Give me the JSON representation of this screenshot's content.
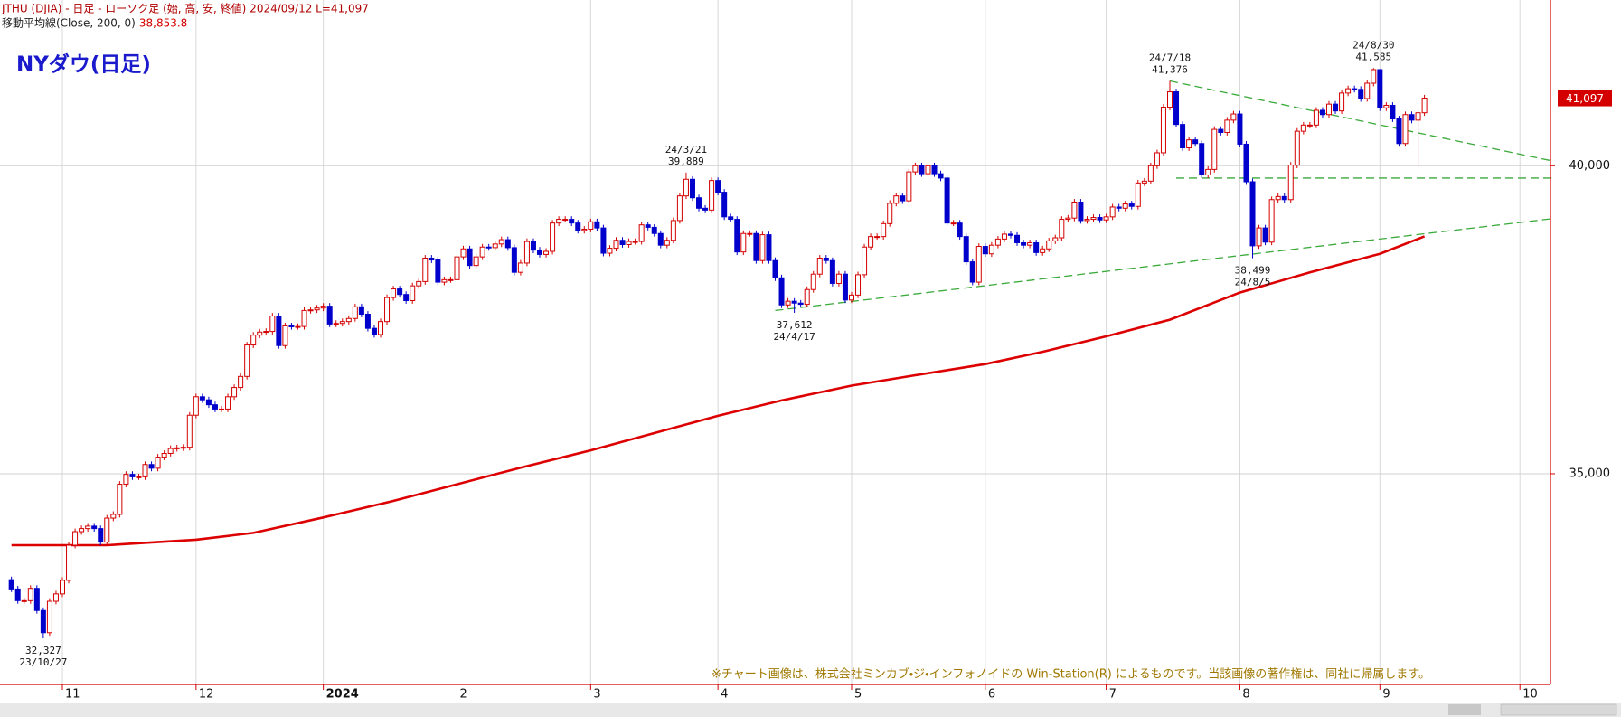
{
  "chart_data": {
    "type": "candlestick",
    "header": "JTHU (DJIA) - 日足 - ローソク足 (始, 高, 安, 終値)  2024/09/12 L=41,097",
    "title": "NYダウ(日足)",
    "footnote": "※チャート画像は、株式会社ミンカブ・ジ・インフォノイドの Win-Station(R) によるものです。当該画像の著作権は、同社に帰属します。",
    "xlim": [
      -1.8,
      241.8
    ],
    "xticks": [
      {
        "value": 8,
        "label": "11"
      },
      {
        "value": 29,
        "label": "12"
      },
      {
        "value": 49,
        "label": "2024"
      },
      {
        "value": 70,
        "label": "2"
      },
      {
        "value": 91,
        "label": "3"
      },
      {
        "value": 111,
        "label": "4"
      },
      {
        "value": 132,
        "label": "5"
      },
      {
        "value": 153,
        "label": "6"
      },
      {
        "value": 172,
        "label": "7"
      },
      {
        "value": 193,
        "label": "8"
      },
      {
        "value": 215,
        "label": "9"
      },
      {
        "value": 237,
        "label": "10"
      }
    ],
    "ylim": [
      31580,
      42690
    ],
    "yticks": [
      {
        "value": 40000,
        "label": "40,000"
      },
      {
        "value": 35000,
        "label": "35,000"
      }
    ],
    "grid": true,
    "candles": {
      "up_color": "#d40000",
      "down_color": "#0000cc",
      "open": [
        33280,
        33130,
        32940,
        32940,
        33140,
        32780,
        32420,
        32930,
        33050,
        33270,
        33840,
        34060,
        34110,
        34150,
        34110,
        33890,
        34280,
        34340,
        34830,
        34990,
        34950,
        34950,
        35150,
        35090,
        35270,
        35330,
        35410,
        35420,
        35430,
        35950,
        36250,
        36200,
        36120,
        36050,
        36050,
        36250,
        36400,
        36580,
        37090,
        37250,
        37300,
        37310,
        37560,
        37080,
        37400,
        37390,
        37390,
        37650,
        37660,
        37690,
        37720,
        37430,
        37440,
        37470,
        37520,
        37710,
        37590,
        37360,
        37260,
        37470,
        37860,
        38000,
        37910,
        37810,
        38050,
        38120,
        38500,
        38470,
        38110,
        38150,
        38150,
        38520,
        38650,
        38380,
        38520,
        38680,
        38670,
        38730,
        38800,
        38670,
        38270,
        38420,
        38770,
        38630,
        38560,
        38610,
        39070,
        39130,
        39130,
        39070,
        38950,
        38970,
        39090,
        38990,
        38580,
        38660,
        38790,
        38720,
        38770,
        38770,
        39040,
        39000,
        38900,
        38710,
        38790,
        39110,
        39510,
        39780,
        39480,
        39310,
        39280,
        39760,
        39570,
        39170,
        39130,
        38600,
        38900,
        38900,
        38460,
        38880,
        38460,
        38180,
        37740,
        37800,
        37770,
        37750,
        37990,
        38240,
        38500,
        38460,
        38090,
        38240,
        37820,
        37900,
        38230,
        38680,
        38850,
        38850,
        39060,
        39390,
        39510,
        39430,
        39900,
        40000,
        39870,
        40000,
        39870,
        39800,
        39070,
        39070,
        38850,
        38440,
        38110,
        38690,
        38570,
        38710,
        38810,
        38890,
        38870,
        38750,
        38710,
        38750,
        38590,
        38650,
        38780,
        38830,
        39130,
        39150,
        39410,
        39110,
        39130,
        39160,
        39120,
        39170,
        39330,
        39310,
        39380,
        39340,
        39720,
        39750,
        40000,
        40210,
        40950,
        41200,
        40670,
        40290,
        40420,
        40360,
        39850,
        39940,
        40590,
        40540,
        40740,
        40840,
        40350,
        39740,
        38700,
        38990,
        38760,
        39450,
        39500,
        39450,
        40010,
        40560,
        40660,
        40660,
        40900,
        40830,
        41000,
        40890,
        41180,
        41250,
        41240,
        41090,
        41340,
        41560,
        40940,
        40980,
        40760,
        40360,
        40830,
        40740,
        40860
      ],
      "high": [
        33330,
        33180,
        32990,
        33190,
        33190,
        32830,
        32980,
        33100,
        33320,
        33890,
        34110,
        34160,
        34200,
        34200,
        34160,
        34330,
        34390,
        34880,
        35040,
        35040,
        35000,
        35200,
        35200,
        35320,
        35380,
        35460,
        35470,
        35480,
        36000,
        36300,
        36300,
        36250,
        36170,
        36100,
        36300,
        36450,
        36630,
        37140,
        37300,
        37350,
        37360,
        37610,
        37610,
        37450,
        37450,
        37440,
        37700,
        37710,
        37740,
        37770,
        37770,
        37490,
        37520,
        37570,
        37760,
        37760,
        37640,
        37410,
        37520,
        37910,
        38050,
        38050,
        37960,
        38100,
        38170,
        38550,
        38550,
        38520,
        38200,
        38200,
        38570,
        38700,
        38700,
        38570,
        38730,
        38730,
        38780,
        38850,
        38850,
        38720,
        38470,
        38820,
        38820,
        38680,
        38660,
        39120,
        39180,
        39180,
        39180,
        39120,
        39020,
        39140,
        39140,
        39040,
        38710,
        38840,
        38840,
        38820,
        38820,
        39090,
        39090,
        39050,
        38950,
        38840,
        39160,
        39560,
        39889,
        39830,
        39530,
        39360,
        39810,
        39810,
        39620,
        39220,
        39180,
        38950,
        38950,
        38950,
        38930,
        38930,
        38510,
        38230,
        37850,
        37850,
        37820,
        38040,
        38290,
        38550,
        38550,
        38510,
        38290,
        38290,
        37950,
        38280,
        38730,
        38900,
        38900,
        39110,
        39440,
        39560,
        39560,
        39950,
        40050,
        40050,
        40050,
        40050,
        39920,
        39850,
        39120,
        39120,
        38900,
        38490,
        38740,
        38740,
        38760,
        38860,
        38940,
        38940,
        38920,
        38800,
        38800,
        38800,
        38700,
        38830,
        38880,
        39180,
        39200,
        39460,
        39460,
        39180,
        39210,
        39210,
        39220,
        39380,
        39380,
        39430,
        39430,
        39770,
        39800,
        40050,
        40260,
        41000,
        41376,
        41250,
        40720,
        40470,
        40470,
        40410,
        39990,
        40640,
        40640,
        40790,
        40890,
        40890,
        40400,
        39790,
        39040,
        39040,
        39500,
        39550,
        39550,
        40060,
        40610,
        40710,
        40710,
        40950,
        40950,
        41050,
        41050,
        41230,
        41300,
        41300,
        41290,
        41390,
        41585,
        41570,
        41030,
        41030,
        40810,
        40880,
        40880,
        40910,
        41150
      ],
      "low": [
        33080,
        32890,
        32890,
        32890,
        32730,
        32327,
        32370,
        32880,
        33000,
        33220,
        33790,
        34010,
        34060,
        34060,
        33840,
        33840,
        34230,
        34290,
        34780,
        34900,
        34900,
        34900,
        35040,
        35040,
        35220,
        35280,
        35360,
        35370,
        35380,
        35900,
        36150,
        36070,
        36000,
        36000,
        36000,
        36200,
        36350,
        36530,
        37040,
        37200,
        37250,
        37260,
        37030,
        37030,
        37340,
        37340,
        37340,
        37600,
        37610,
        37640,
        37380,
        37380,
        37390,
        37420,
        37470,
        37540,
        37310,
        37210,
        37210,
        37420,
        37810,
        37860,
        37760,
        37760,
        38000,
        38070,
        38420,
        38060,
        38060,
        38100,
        38100,
        38470,
        38330,
        38330,
        38470,
        38620,
        38620,
        38680,
        38620,
        38220,
        38220,
        38370,
        38580,
        38510,
        38510,
        38560,
        39020,
        39080,
        39020,
        38900,
        38900,
        38920,
        38940,
        38530,
        38530,
        38610,
        38670,
        38670,
        38720,
        38720,
        38950,
        38850,
        38660,
        38660,
        38740,
        39060,
        39460,
        39430,
        39260,
        39230,
        39230,
        39520,
        39120,
        39080,
        38550,
        38550,
        38850,
        38410,
        38410,
        38410,
        38130,
        37690,
        37690,
        37612,
        37700,
        37700,
        37940,
        38190,
        38410,
        38040,
        38040,
        37770,
        37770,
        37850,
        38180,
        38630,
        38800,
        38800,
        39010,
        39340,
        39380,
        39380,
        39850,
        39820,
        39820,
        39820,
        39750,
        39020,
        39020,
        38800,
        38390,
        38060,
        38060,
        38520,
        38520,
        38660,
        38760,
        38820,
        38700,
        38660,
        38660,
        38540,
        38540,
        38600,
        38730,
        38780,
        39080,
        39100,
        39060,
        39060,
        39080,
        39070,
        39070,
        39120,
        39260,
        39260,
        39290,
        39290,
        39670,
        39700,
        39950,
        40160,
        40900,
        40620,
        40240,
        40240,
        40310,
        39800,
        39800,
        39890,
        40490,
        40490,
        40690,
        40300,
        39690,
        38499,
        38650,
        38710,
        38710,
        39400,
        39400,
        39400,
        39960,
        40510,
        40610,
        40610,
        40780,
        40780,
        40840,
        40840,
        41130,
        41190,
        41040,
        41040,
        41290,
        40890,
        40890,
        40710,
        40310,
        40310,
        40690,
        39990,
        40810
      ],
      "close": [
        33130,
        32940,
        32940,
        33140,
        32780,
        32420,
        32930,
        33050,
        33270,
        33840,
        34060,
        34110,
        34150,
        34110,
        33890,
        34280,
        34340,
        34830,
        34990,
        34950,
        34950,
        35150,
        35090,
        35270,
        35330,
        35410,
        35420,
        35430,
        35950,
        36250,
        36200,
        36120,
        36050,
        36050,
        36250,
        36400,
        36580,
        37090,
        37250,
        37300,
        37310,
        37560,
        37080,
        37400,
        37390,
        37390,
        37650,
        37660,
        37690,
        37720,
        37430,
        37440,
        37470,
        37520,
        37710,
        37590,
        37360,
        37260,
        37470,
        37860,
        38000,
        37910,
        37810,
        38050,
        38120,
        38500,
        38470,
        38110,
        38150,
        38150,
        38520,
        38650,
        38380,
        38520,
        38680,
        38670,
        38730,
        38800,
        38670,
        38270,
        38420,
        38770,
        38630,
        38560,
        38610,
        39070,
        39130,
        39130,
        39070,
        38950,
        38970,
        39090,
        38990,
        38580,
        38660,
        38790,
        38720,
        38770,
        38770,
        39040,
        39000,
        38900,
        38710,
        38790,
        39110,
        39510,
        39780,
        39480,
        39310,
        39280,
        39760,
        39570,
        39170,
        39130,
        38600,
        38900,
        38900,
        38460,
        38880,
        38460,
        38180,
        37740,
        37800,
        37770,
        37750,
        37990,
        38240,
        38500,
        38460,
        38090,
        38240,
        37820,
        37900,
        38230,
        38680,
        38850,
        38850,
        39060,
        39390,
        39510,
        39430,
        39900,
        40000,
        39870,
        40000,
        39870,
        39800,
        39070,
        39070,
        38850,
        38440,
        38110,
        38690,
        38570,
        38710,
        38810,
        38890,
        38870,
        38750,
        38710,
        38750,
        38590,
        38650,
        38780,
        38830,
        39130,
        39150,
        39410,
        39110,
        39130,
        39160,
        39120,
        39170,
        39330,
        39310,
        39380,
        39340,
        39720,
        39750,
        40000,
        40210,
        40950,
        41200,
        40670,
        40290,
        40420,
        40360,
        39850,
        39940,
        40590,
        40540,
        40740,
        40840,
        40350,
        39740,
        38700,
        38990,
        38760,
        39450,
        39500,
        39450,
        40010,
        40560,
        40660,
        40660,
        40900,
        40830,
        41000,
        40890,
        41180,
        41250,
        41240,
        41090,
        41340,
        41560,
        40940,
        40980,
        40760,
        40360,
        40830,
        40740,
        40860,
        41097
      ]
    },
    "moving_average": {
      "label": "移動平均線(Close, 200, 0)",
      "value_label": "38,853.8",
      "color": "#dd0000",
      "x": [
        0,
        15,
        29,
        38,
        49,
        60,
        70,
        80,
        91,
        101,
        111,
        121,
        132,
        142,
        153,
        162,
        172,
        182,
        193,
        204,
        215,
        222
      ],
      "values": [
        33840,
        33840,
        33930,
        34040,
        34290,
        34560,
        34830,
        35100,
        35380,
        35660,
        35940,
        36190,
        36430,
        36600,
        36780,
        36980,
        37230,
        37500,
        37940,
        38270,
        38570,
        38853.8
      ]
    },
    "last_price": {
      "value": 41097,
      "label": "41,097"
    },
    "annotations": [
      {
        "at": 5,
        "date": "23/10/27",
        "value": 32327,
        "label": "32,327"
      },
      {
        "at": 106,
        "date": "24/3/21",
        "value": 39889,
        "label": "39,889"
      },
      {
        "at": 123,
        "date": "24/4/17",
        "value": 37612,
        "label": "37,612"
      },
      {
        "at": 182,
        "date": "24/7/18",
        "value": 41376,
        "label": "41,376"
      },
      {
        "at": 195,
        "date": "24/8/5",
        "value": 38499,
        "label": "38,499"
      },
      {
        "at": 214,
        "date": "24/8/30",
        "value": 41585,
        "label": "41,585"
      }
    ],
    "trendline_color": "#3aaa3a",
    "trendlines": [
      {
        "points": [
          [
            120,
            37650
          ],
          [
            242,
            39140
          ]
        ]
      },
      {
        "points": [
          [
            182,
            41376
          ],
          [
            242,
            40080
          ]
        ]
      },
      {
        "points": [
          [
            183,
            39800
          ],
          [
            242,
            39800
          ]
        ]
      }
    ]
  }
}
